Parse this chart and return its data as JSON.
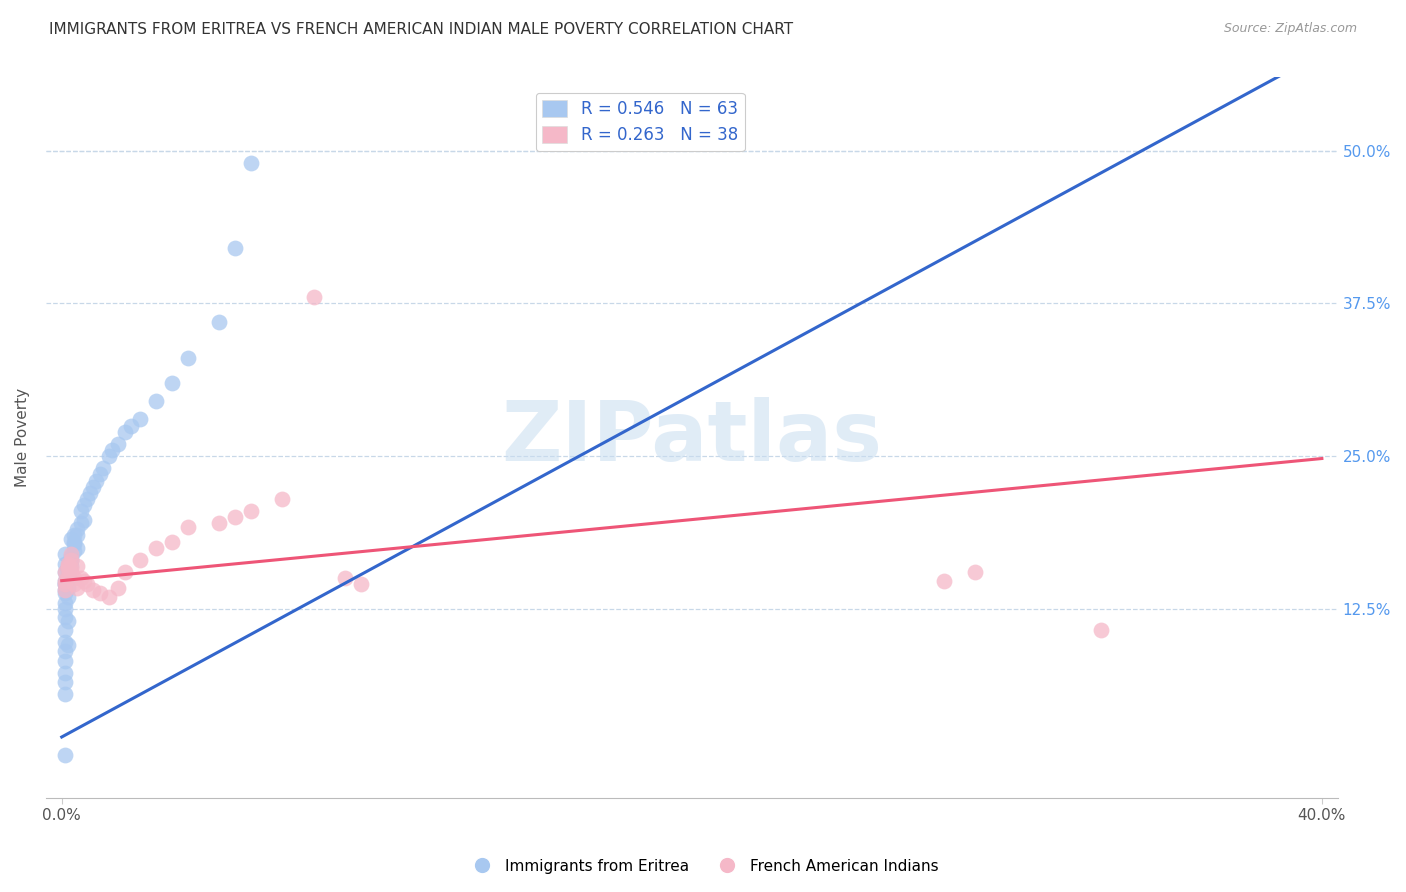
{
  "title": "IMMIGRANTS FROM ERITREA VS FRENCH AMERICAN INDIAN MALE POVERTY CORRELATION CHART",
  "source": "Source: ZipAtlas.com",
  "ylabel": "Male Poverty",
  "ytick_labels": [
    "50.0%",
    "37.5%",
    "25.0%",
    "12.5%"
  ],
  "ytick_values": [
    0.5,
    0.375,
    0.25,
    0.125
  ],
  "xlim": [
    0.0,
    0.4
  ],
  "ylim": [
    -0.03,
    0.56
  ],
  "blue_color": "#a8c8f0",
  "pink_color": "#f5b8c8",
  "line_blue": "#3366cc",
  "line_pink": "#ee5577",
  "bg_color": "#ffffff",
  "watermark_text": "ZIPatlas",
  "legend_label1": "R = 0.546   N = 63",
  "legend_label2": "R = 0.263   N = 38",
  "bottom_label1": "Immigrants from Eritrea",
  "bottom_label2": "French American Indians",
  "blue_x": [
    0.001,
    0.002,
    0.001,
    0.003,
    0.002,
    0.001,
    0.002,
    0.003,
    0.001,
    0.002,
    0.001,
    0.002,
    0.001,
    0.002,
    0.001,
    0.001,
    0.002,
    0.001,
    0.002,
    0.001,
    0.001,
    0.001,
    0.002,
    0.001,
    0.001,
    0.001,
    0.002,
    0.001,
    0.001,
    0.001,
    0.003,
    0.004,
    0.003,
    0.004,
    0.003,
    0.004,
    0.005,
    0.004,
    0.005,
    0.005,
    0.006,
    0.007,
    0.006,
    0.007,
    0.008,
    0.009,
    0.01,
    0.011,
    0.012,
    0.013,
    0.015,
    0.016,
    0.018,
    0.02,
    0.022,
    0.025,
    0.03,
    0.035,
    0.04,
    0.05,
    0.055,
    0.06,
    0.001
  ],
  "blue_y": [
    0.155,
    0.16,
    0.145,
    0.165,
    0.15,
    0.14,
    0.155,
    0.16,
    0.17,
    0.158,
    0.148,
    0.153,
    0.162,
    0.157,
    0.138,
    0.13,
    0.142,
    0.125,
    0.135,
    0.145,
    0.118,
    0.108,
    0.115,
    0.098,
    0.09,
    0.082,
    0.095,
    0.072,
    0.065,
    0.055,
    0.168,
    0.172,
    0.165,
    0.178,
    0.182,
    0.185,
    0.175,
    0.18,
    0.19,
    0.185,
    0.195,
    0.198,
    0.205,
    0.21,
    0.215,
    0.22,
    0.225,
    0.23,
    0.235,
    0.24,
    0.25,
    0.255,
    0.26,
    0.27,
    0.275,
    0.28,
    0.295,
    0.31,
    0.33,
    0.36,
    0.42,
    0.49,
    0.005
  ],
  "pink_x": [
    0.001,
    0.002,
    0.001,
    0.003,
    0.002,
    0.001,
    0.002,
    0.003,
    0.001,
    0.002,
    0.003,
    0.004,
    0.003,
    0.004,
    0.005,
    0.005,
    0.006,
    0.007,
    0.008,
    0.01,
    0.012,
    0.015,
    0.018,
    0.02,
    0.025,
    0.03,
    0.035,
    0.04,
    0.05,
    0.055,
    0.06,
    0.07,
    0.08,
    0.09,
    0.095,
    0.28,
    0.29,
    0.33
  ],
  "pink_y": [
    0.155,
    0.162,
    0.148,
    0.17,
    0.158,
    0.14,
    0.152,
    0.165,
    0.145,
    0.16,
    0.155,
    0.15,
    0.158,
    0.145,
    0.16,
    0.142,
    0.15,
    0.148,
    0.145,
    0.14,
    0.138,
    0.135,
    0.142,
    0.155,
    0.165,
    0.175,
    0.18,
    0.192,
    0.195,
    0.2,
    0.205,
    0.215,
    0.38,
    0.15,
    0.145,
    0.148,
    0.155,
    0.108
  ],
  "blue_line_x": [
    0.0,
    0.4
  ],
  "blue_line_y": [
    0.02,
    0.58
  ],
  "pink_line_x": [
    0.0,
    0.4
  ],
  "pink_line_y": [
    0.148,
    0.248
  ]
}
